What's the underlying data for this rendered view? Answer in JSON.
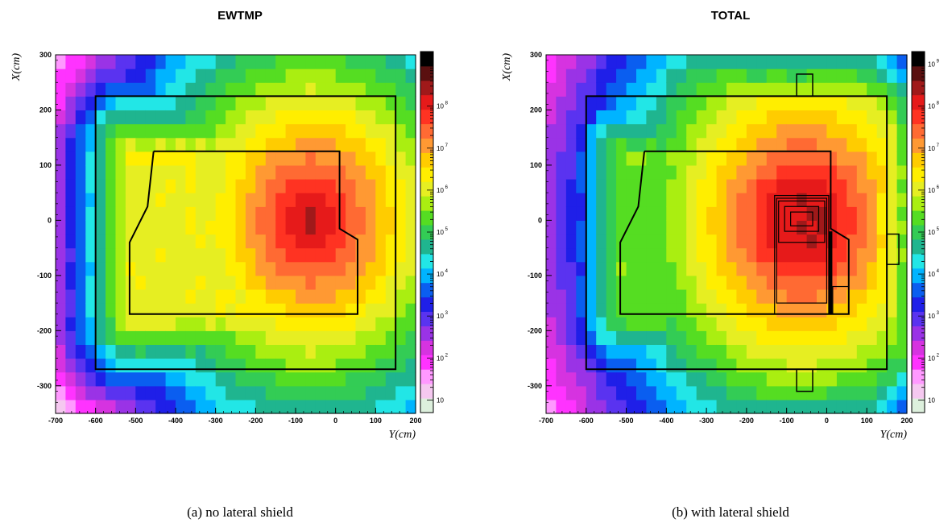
{
  "chart_data": [
    {
      "type": "heatmap",
      "title": "EWTMP",
      "caption": "(a) no lateral shield",
      "xlabel": "Y(cm)",
      "ylabel": "X(cm)",
      "xlim": [
        -700,
        200
      ],
      "ylim": [
        -350,
        300
      ],
      "xticks": [
        "-700",
        "-600",
        "-500",
        "-400",
        "-300",
        "-200",
        "-100",
        "0",
        "100",
        "200"
      ],
      "yticks": [
        "300",
        "200",
        "100",
        "0",
        "-100",
        "-200",
        "-300"
      ],
      "colorbar": {
        "scale": "log",
        "range": [
          1,
          1000000000
        ],
        "labels": [
          "10",
          "10 2",
          "10 3",
          "10 4",
          "10 5",
          "10 6",
          "10 7",
          "10 8"
        ]
      },
      "hotspot": {
        "y": -60,
        "x": 0,
        "peak_decade": 8.3
      },
      "field_shape": {
        "plateau_decade": 6.0,
        "gradient_per_100cm": 0.4,
        "inner_region": {
          "y": [
            -520,
            55
          ],
          "x": [
            -175,
            125
          ]
        }
      },
      "grid": false
    },
    {
      "type": "heatmap",
      "title": "TOTAL",
      "caption": "(b) with lateral shield",
      "xlabel": "Y(cm)",
      "ylabel": "X(cm)",
      "xlim": [
        -700,
        200
      ],
      "ylim": [
        -350,
        300
      ],
      "xticks": [
        "-700",
        "-600",
        "-500",
        "-400",
        "-300",
        "-200",
        "-100",
        "0",
        "100",
        "200"
      ],
      "yticks": [
        "300",
        "200",
        "100",
        "0",
        "-100",
        "-200",
        "-300"
      ],
      "colorbar": {
        "scale": "log",
        "range": [
          1,
          1000000000
        ],
        "labels": [
          "10",
          "10 2",
          "10 3",
          "10 4",
          "10 5",
          "10 6",
          "10 7",
          "10 8",
          "10 9"
        ]
      },
      "hotspot": {
        "y": -60,
        "x": 0,
        "peak_decade": 8.6
      },
      "field_shape": {
        "plateau_decade": 5.3,
        "gradient_per_100cm": 0.4,
        "inner_region": {
          "y": [
            -520,
            55
          ],
          "x": [
            -175,
            125
          ]
        }
      },
      "grid": false
    }
  ]
}
